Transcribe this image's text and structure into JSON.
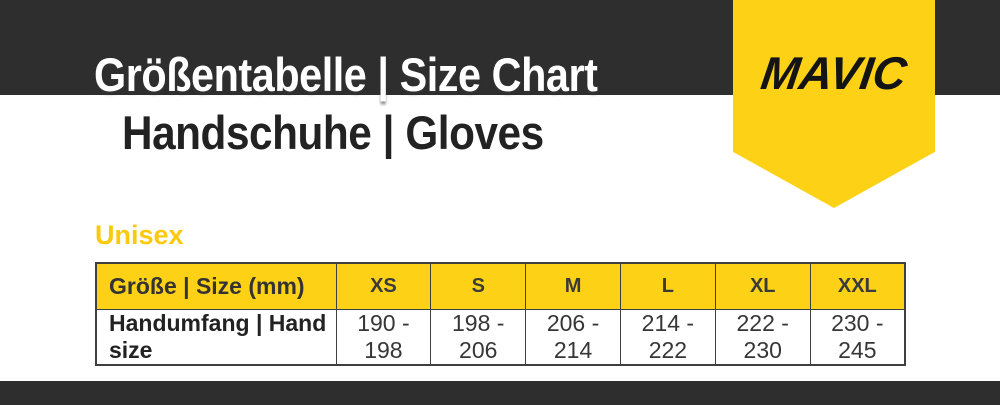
{
  "colors": {
    "bar_dark": "#2e2e2e",
    "brand_yellow": "#fdd216",
    "unisex_text": "#fcc90c",
    "title_light": "#ffffff",
    "text_dark": "#222222",
    "table_border": "#3f3f3f"
  },
  "header": {
    "title_line1": "Größentabelle | Size Chart",
    "title_line2": "Handschuhe | Gloves",
    "brand": "MAVIC"
  },
  "section": {
    "label": "Unisex"
  },
  "table": {
    "header": [
      "Größe | Size (mm)",
      "XS",
      "S",
      "M",
      "L",
      "XL",
      "XXL"
    ],
    "rows": [
      [
        "Handumfang | Hand size",
        "190 - 198",
        "198 - 206",
        "206 - 214",
        "214 - 222",
        "222 - 230",
        "230 - 245"
      ]
    ]
  },
  "chart_data": {
    "type": "table",
    "title": "Größentabelle | Size Chart",
    "subtitle": "Handschuhe | Gloves",
    "section": "Unisex",
    "columns": [
      "Größe | Size (mm)",
      "XS",
      "S",
      "M",
      "L",
      "XL",
      "XXL"
    ],
    "rows": [
      [
        "Handumfang | Hand size",
        "190 - 198",
        "198 - 206",
        "206 - 214",
        "214 - 222",
        "222 - 230",
        "230 - 245"
      ]
    ]
  }
}
